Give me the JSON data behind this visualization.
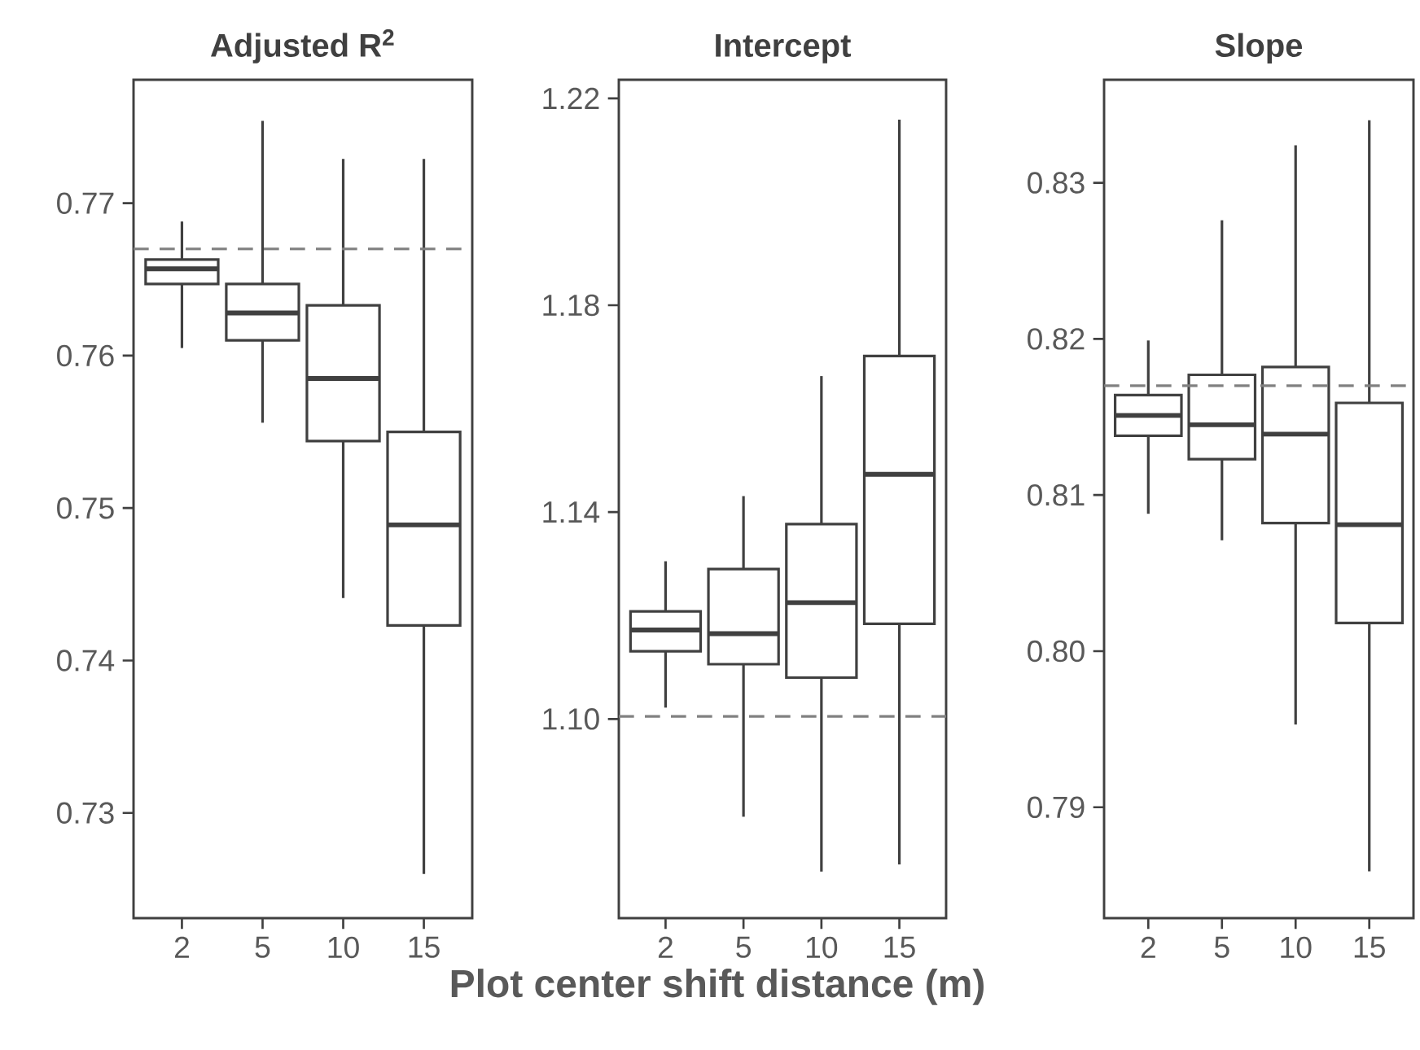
{
  "chart_data": [
    {
      "type": "box",
      "title": "Adjusted R$^{2}$",
      "categories": [
        "2",
        "5",
        "10",
        "15"
      ],
      "boxes": [
        {
          "low": 0.7605,
          "q1": 0.7647,
          "median": 0.7657,
          "q3": 0.7663,
          "high": 0.7688
        },
        {
          "low": 0.7556,
          "q1": 0.761,
          "median": 0.7628,
          "q3": 0.7647,
          "high": 0.7754
        },
        {
          "low": 0.7441,
          "q1": 0.7544,
          "median": 0.7585,
          "q3": 0.7633,
          "high": 0.7729
        },
        {
          "low": 0.726,
          "q1": 0.7423,
          "median": 0.7489,
          "q3": 0.755,
          "high": 0.7729
        }
      ],
      "ylim": [
        0.7231,
        0.7781
      ],
      "yticks": [
        0.73,
        0.74,
        0.75,
        0.76,
        0.77
      ],
      "ref_lines": [
        {
          "axis": "y",
          "value": 0.767,
          "line_style": "dashed",
          "color": "#808080"
        }
      ]
    },
    {
      "type": "box",
      "title": "Intercept",
      "xlabel": "Plot center shift distance (m)",
      "categories": [
        "2",
        "5",
        "10",
        "15"
      ],
      "boxes": [
        {
          "low": 1.1022,
          "q1": 1.1131,
          "median": 1.1172,
          "q3": 1.1208,
          "high": 1.1305
        },
        {
          "low": 1.0811,
          "q1": 1.1106,
          "median": 1.1165,
          "q3": 1.129,
          "high": 1.1431
        },
        {
          "low": 1.0705,
          "q1": 1.108,
          "median": 1.1225,
          "q3": 1.1377,
          "high": 1.1663
        },
        {
          "low": 1.0719,
          "q1": 1.1184,
          "median": 1.1473,
          "q3": 1.1702,
          "high": 1.2159
        }
      ],
      "ylim": [
        1.0615,
        1.2236
      ],
      "yticks": [
        {
          "value": 1.1,
          "label": "1.10"
        },
        1.14,
        1.18,
        1.22
      ],
      "ref_lines": [
        {
          "axis": "y",
          "value": 1.1005,
          "line_style": "dashed",
          "color": "#808080"
        }
      ]
    },
    {
      "type": "box",
      "title": "Slope",
      "categories": [
        "2",
        "5",
        "10",
        "15"
      ],
      "boxes": [
        {
          "low": 0.8088,
          "q1": 0.8138,
          "median": 0.8151,
          "q3": 0.8164,
          "high": 0.8199
        },
        {
          "low": 0.8071,
          "q1": 0.8123,
          "median": 0.8145,
          "q3": 0.8177,
          "high": 0.8276
        },
        {
          "low": 0.7953,
          "q1": 0.8082,
          "median": 0.8139,
          "q3": 0.8182,
          "high": 0.8324
        },
        {
          "low": 0.7859,
          "q1": 0.8018,
          "median": 0.8081,
          "q3": 0.8159,
          "high": 0.834
        }
      ],
      "ylim": [
        0.7829,
        0.8366
      ],
      "yticks": [
        0.79,
        {
          "value": 0.8,
          "label": "0.80"
        },
        0.81,
        0.82,
        0.83
      ],
      "ref_lines": [
        {
          "axis": "y",
          "value": 0.817,
          "line_style": "dashed",
          "color": "#808080"
        }
      ]
    }
  ]
}
